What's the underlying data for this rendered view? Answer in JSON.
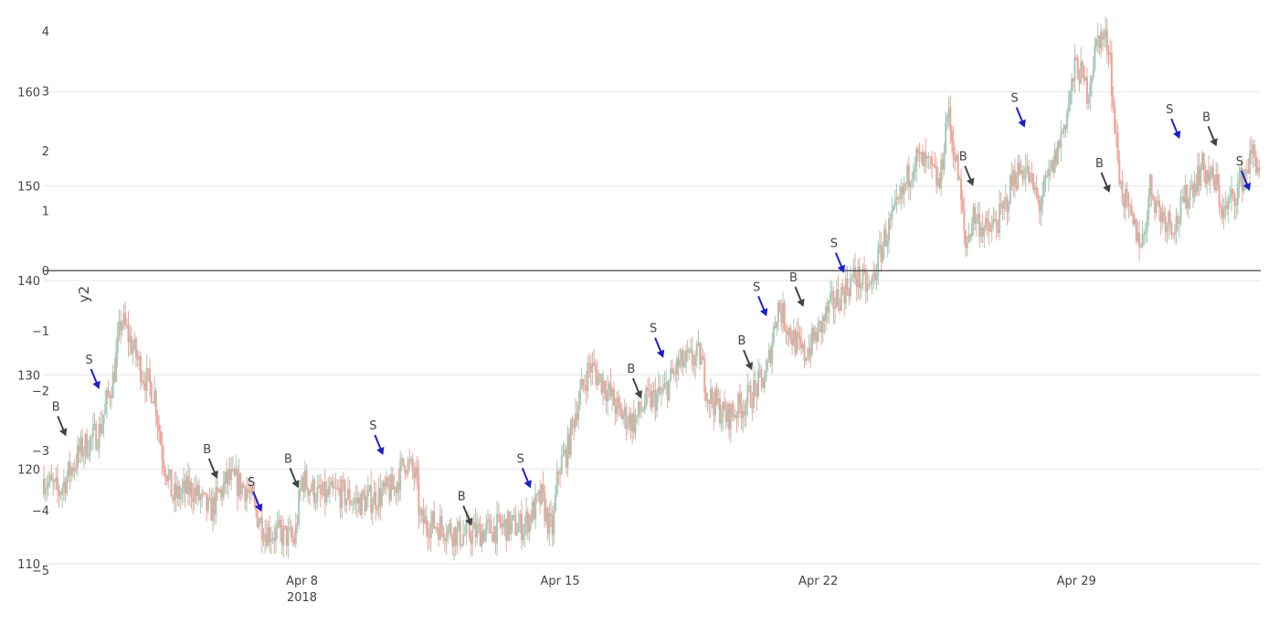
{
  "chart_data": {
    "type": "candlestick",
    "title": "",
    "x_range": [
      "2018-04-01",
      "2018-05-04"
    ],
    "x_ticks": [
      {
        "date": "2018-04-08",
        "label": "Apr 8",
        "sublabel": "2018"
      },
      {
        "date": "2018-04-15",
        "label": "Apr 15",
        "sublabel": ""
      },
      {
        "date": "2018-04-22",
        "label": "Apr 22",
        "sublabel": ""
      },
      {
        "date": "2018-04-29",
        "label": "Apr 29",
        "sublabel": ""
      }
    ],
    "y_axis": {
      "range": [
        110,
        167
      ],
      "ticks": [
        110,
        120,
        130,
        140,
        150,
        160
      ],
      "grid": true
    },
    "y2_axis": {
      "label": "y2",
      "range": [
        -5,
        4
      ],
      "ticks": [
        -5,
        -4,
        -3,
        -2,
        -1,
        0,
        1,
        2,
        3,
        4
      ],
      "zero_line_value": 0
    },
    "colors": {
      "increasing": "#a6c8b4",
      "decreasing": "#f0a39b",
      "sell_arrow": "#1f1fc8",
      "buy_arrow": "#444444",
      "grid": "#e6e6e6",
      "zero_line": "#444444"
    },
    "series": [
      {
        "name": "",
        "type": "close_path",
        "points": [
          [
            "2018-04-01",
            119
          ],
          [
            "2018-04-01.4",
            117.5
          ],
          [
            "2018-04-02",
            122
          ],
          [
            "2018-04-02.5",
            124
          ],
          [
            "2018-04-02.9",
            130
          ],
          [
            "2018-04-03.1",
            136
          ],
          [
            "2018-04-03.4",
            133
          ],
          [
            "2018-04-03.7",
            130
          ],
          [
            "2018-04-04",
            128
          ],
          [
            "2018-04-04.2",
            122
          ],
          [
            "2018-04-04.5",
            117
          ],
          [
            "2018-04-05",
            118
          ],
          [
            "2018-04-05.5",
            115.5
          ],
          [
            "2018-04-06",
            119
          ],
          [
            "2018-04-06.5",
            118
          ],
          [
            "2018-04-06.8",
            115
          ],
          [
            "2018-04-07",
            113.5
          ],
          [
            "2018-04-07.5",
            113
          ],
          [
            "2018-04-07.8",
            112.5
          ],
          [
            "2018-04-08",
            119
          ],
          [
            "2018-04-08.5",
            117
          ],
          [
            "2018-04-09",
            117.5
          ],
          [
            "2018-04-09.5",
            116.5
          ],
          [
            "2018-04-10",
            117
          ],
          [
            "2018-04-10.5",
            118
          ],
          [
            "2018-04-10.8",
            121
          ],
          [
            "2018-04-11.1",
            119
          ],
          [
            "2018-04-11.2",
            114.5
          ],
          [
            "2018-04-11.8",
            114
          ],
          [
            "2018-04-12.3",
            113
          ],
          [
            "2018-04-13",
            113.5
          ],
          [
            "2018-04-13.5",
            114
          ],
          [
            "2018-04-14",
            114
          ],
          [
            "2018-04-14.5",
            117
          ],
          [
            "2018-04-14.7",
            114
          ],
          [
            "2018-04-14.8",
            113.5
          ],
          [
            "2018-04-14.95",
            120
          ],
          [
            "2018-04-15.2",
            122
          ],
          [
            "2018-04-15.4",
            126
          ],
          [
            "2018-04-15.8",
            131
          ],
          [
            "2018-04-16.2",
            129
          ],
          [
            "2018-04-16.6",
            126
          ],
          [
            "2018-04-17",
            125
          ],
          [
            "2018-04-17.3",
            127
          ],
          [
            "2018-04-17.8",
            128
          ],
          [
            "2018-04-18.2",
            131
          ],
          [
            "2018-04-18.8",
            132
          ],
          [
            "2018-04-19",
            128
          ],
          [
            "2018-04-19.5",
            125.5
          ],
          [
            "2018-04-20",
            127
          ],
          [
            "2018-04-20.6",
            130
          ],
          [
            "2018-04-20.9",
            137.5
          ],
          [
            "2018-04-21.3",
            134
          ],
          [
            "2018-04-21.6",
            132
          ],
          [
            "2018-04-22",
            134.5
          ],
          [
            "2018-04-22.3",
            137
          ],
          [
            "2018-04-22.6",
            138.5
          ],
          [
            "2018-04-23",
            140.5
          ],
          [
            "2018-04-23.4",
            139
          ],
          [
            "2018-04-23.8",
            144.5
          ],
          [
            "2018-04-24.2",
            148
          ],
          [
            "2018-04-24.6",
            153
          ],
          [
            "2018-04-25",
            152
          ],
          [
            "2018-04-25.3",
            150
          ],
          [
            "2018-04-25.5",
            158
          ],
          [
            "2018-04-25.8",
            151
          ],
          [
            "2018-04-26",
            143.5
          ],
          [
            "2018-04-26.2",
            147
          ],
          [
            "2018-04-26.6",
            145
          ],
          [
            "2018-04-27",
            147
          ],
          [
            "2018-04-27.3",
            151
          ],
          [
            "2018-04-27.6",
            152
          ],
          [
            "2018-04-28",
            148
          ],
          [
            "2018-04-28.4",
            152.5
          ],
          [
            "2018-04-28.7",
            157
          ],
          [
            "2018-04-29",
            163
          ],
          [
            "2018-04-29.3",
            160
          ],
          [
            "2018-04-29.6",
            166
          ],
          [
            "2018-04-29.9",
            165
          ],
          [
            "2018-04-30",
            158
          ],
          [
            "2018-04-30.2",
            150
          ],
          [
            "2018-04-30.5",
            146
          ],
          [
            "2018-04-30.8",
            144
          ],
          [
            "2018-05-01",
            150
          ],
          [
            "2018-05-01.3",
            147
          ],
          [
            "2018-05-01.7",
            146
          ],
          [
            "2018-05-02",
            149
          ],
          [
            "2018-05-02.4",
            152
          ],
          [
            "2018-05-02.8",
            150
          ],
          [
            "2018-05-03",
            147
          ],
          [
            "2018-05-03.4",
            150
          ],
          [
            "2018-05-03.8",
            153.5
          ],
          [
            "2018-05-04",
            151.5
          ]
        ]
      }
    ],
    "annotations": [
      {
        "text": "B",
        "type": "buy",
        "date": "2018-04-01.6",
        "value": 123.5
      },
      {
        "text": "S",
        "type": "sell",
        "date": "2018-04-02.5",
        "value": 128.5
      },
      {
        "text": "B",
        "type": "buy",
        "date": "2018-04-05.7",
        "value": 119
      },
      {
        "text": "S",
        "type": "sell",
        "date": "2018-04-06.9",
        "value": 115.5
      },
      {
        "text": "B",
        "type": "buy",
        "date": "2018-04-07.9",
        "value": 118
      },
      {
        "text": "S",
        "type": "sell",
        "date": "2018-04-10.2",
        "value": 121.5
      },
      {
        "text": "B",
        "type": "buy",
        "date": "2018-04-12.6",
        "value": 114
      },
      {
        "text": "S",
        "type": "sell",
        "date": "2018-04-14.2",
        "value": 118
      },
      {
        "text": "B",
        "type": "buy",
        "date": "2018-04-17.2",
        "value": 127.5
      },
      {
        "text": "S",
        "type": "sell",
        "date": "2018-04-17.8",
        "value": 131.8
      },
      {
        "text": "B",
        "type": "buy",
        "date": "2018-04-20.2",
        "value": 130.5
      },
      {
        "text": "S",
        "type": "sell",
        "date": "2018-04-20.6",
        "value": 136.2
      },
      {
        "text": "B",
        "type": "buy",
        "date": "2018-04-21.6",
        "value": 137.2
      },
      {
        "text": "S",
        "type": "sell",
        "date": "2018-04-22.7",
        "value": 140.8
      },
      {
        "text": "B",
        "type": "buy",
        "date": "2018-04-26.2",
        "value": 150
      },
      {
        "text": "S",
        "type": "sell",
        "date": "2018-04-27.6",
        "value": 156.2
      },
      {
        "text": "B",
        "type": "buy",
        "date": "2018-04-29.9",
        "value": 149.3
      },
      {
        "text": "S",
        "type": "sell",
        "date": "2018-05-01.8",
        "value": 155
      },
      {
        "text": "B",
        "type": "buy",
        "date": "2018-05-02.8",
        "value": 154.2
      },
      {
        "text": "S",
        "type": "sell",
        "date": "2018-05-03.7",
        "value": 149.5
      }
    ]
  }
}
